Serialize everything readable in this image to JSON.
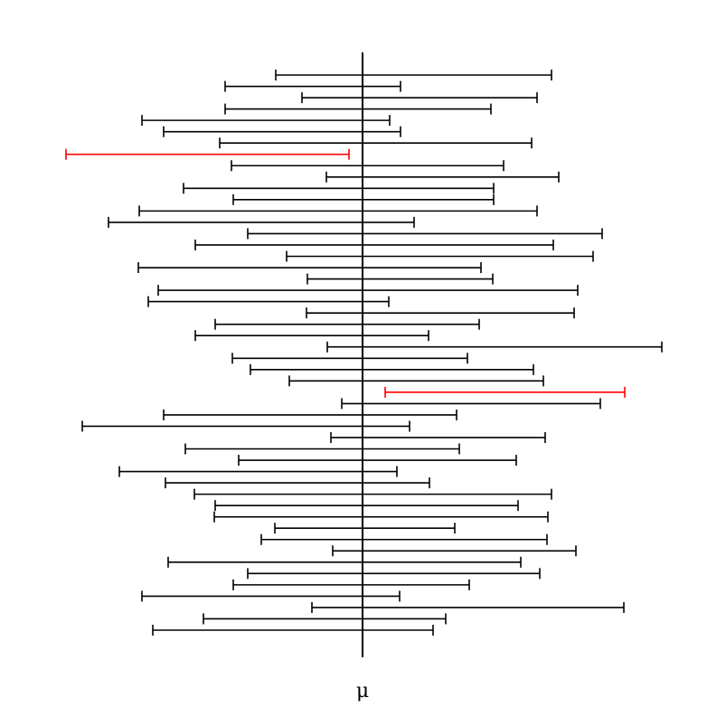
{
  "chart_data": {
    "type": "interval",
    "xlabel": "μ",
    "reference_value": 0,
    "colors": {
      "covers": "#000000",
      "misses": "#ff0000"
    },
    "intervals": [
      {
        "lower": -0.96,
        "upper": 2.09
      },
      {
        "lower": -1.52,
        "upper": 0.42
      },
      {
        "lower": -0.67,
        "upper": 1.93
      },
      {
        "lower": -1.52,
        "upper": 1.42
      },
      {
        "lower": -2.44,
        "upper": 0.3
      },
      {
        "lower": -2.2,
        "upper": 0.42
      },
      {
        "lower": -1.58,
        "upper": 1.87
      },
      {
        "lower": -3.28,
        "upper": -0.15
      },
      {
        "lower": -1.45,
        "upper": 1.56
      },
      {
        "lower": -0.4,
        "upper": 2.17
      },
      {
        "lower": -1.98,
        "upper": 1.45
      },
      {
        "lower": -1.43,
        "upper": 1.45
      },
      {
        "lower": -2.47,
        "upper": 1.93
      },
      {
        "lower": -2.81,
        "upper": 0.57
      },
      {
        "lower": -1.27,
        "upper": 2.65
      },
      {
        "lower": -1.85,
        "upper": 2.11
      },
      {
        "lower": -0.84,
        "upper": 2.55
      },
      {
        "lower": -2.48,
        "upper": 1.31
      },
      {
        "lower": -0.61,
        "upper": 1.44
      },
      {
        "lower": -2.26,
        "upper": 2.38
      },
      {
        "lower": -2.37,
        "upper": 0.29
      },
      {
        "lower": -0.62,
        "upper": 2.34
      },
      {
        "lower": -1.63,
        "upper": 1.29
      },
      {
        "lower": -1.85,
        "upper": 0.73
      },
      {
        "lower": -0.39,
        "upper": 3.31
      },
      {
        "lower": -1.44,
        "upper": 1.16
      },
      {
        "lower": -1.24,
        "upper": 1.89
      },
      {
        "lower": -0.81,
        "upper": 2.0
      },
      {
        "lower": 0.25,
        "upper": 2.9
      },
      {
        "lower": -0.23,
        "upper": 2.63
      },
      {
        "lower": -2.2,
        "upper": 1.04
      },
      {
        "lower": -3.1,
        "upper": 0.52
      },
      {
        "lower": -0.35,
        "upper": 2.02
      },
      {
        "lower": -1.96,
        "upper": 1.07
      },
      {
        "lower": -1.37,
        "upper": 1.7
      },
      {
        "lower": -2.69,
        "upper": 0.38
      },
      {
        "lower": -2.18,
        "upper": 0.74
      },
      {
        "lower": -1.86,
        "upper": 2.09
      },
      {
        "lower": -1.63,
        "upper": 1.72
      },
      {
        "lower": -1.64,
        "upper": 2.05
      },
      {
        "lower": -0.97,
        "upper": 1.02
      },
      {
        "lower": -1.12,
        "upper": 2.04
      },
      {
        "lower": -0.33,
        "upper": 2.36
      },
      {
        "lower": -2.15,
        "upper": 1.75
      },
      {
        "lower": -1.27,
        "upper": 1.96
      },
      {
        "lower": -1.43,
        "upper": 1.18
      },
      {
        "lower": -2.44,
        "upper": 0.41
      },
      {
        "lower": -0.56,
        "upper": 2.89
      },
      {
        "lower": -1.76,
        "upper": 0.92
      },
      {
        "lower": -2.32,
        "upper": 0.78
      }
    ]
  }
}
